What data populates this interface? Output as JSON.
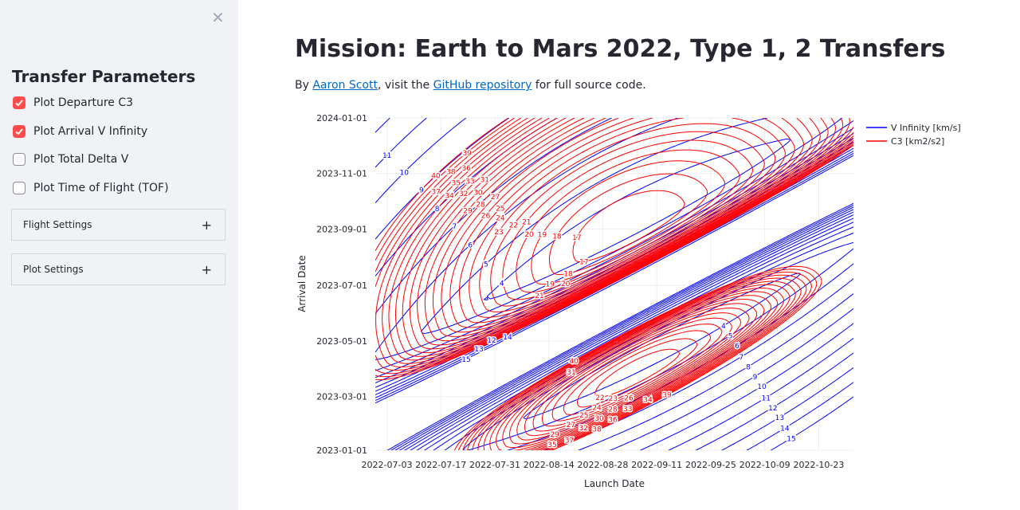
{
  "sidebar": {
    "close_icon": "close-x-icon",
    "title": "Transfer Parameters",
    "checkboxes": [
      {
        "label": "Plot Departure C3",
        "checked": true
      },
      {
        "label": "Plot Arrival V Infinity",
        "checked": true
      },
      {
        "label": "Plot Total Delta V",
        "checked": false
      },
      {
        "label": "Plot Time of Flight (TOF)",
        "checked": false
      }
    ],
    "expanders": [
      {
        "label": "Flight Settings",
        "icon": "+"
      },
      {
        "label": "Plot Settings",
        "icon": "+"
      }
    ],
    "accent": "#ff4b4b"
  },
  "main": {
    "title": "Mission: Earth to Mars 2022, Type 1, 2 Transfers",
    "byline": {
      "pre": "By ",
      "author": "Aaron Scott",
      "mid": ", visit the ",
      "repo": "GitHub repository",
      "post": " for full source code."
    }
  },
  "chart_data": {
    "type": "contour",
    "xlabel": "Launch Date",
    "ylabel": "Arrival Date",
    "xrange": [
      "2022-06-30",
      "2022-11-01"
    ],
    "yrange": [
      "2023-01-01",
      "2024-01-01"
    ],
    "xticks": [
      "2022-07-03",
      "2022-07-17",
      "2022-07-31",
      "2022-08-14",
      "2022-08-28",
      "2022-09-11",
      "2022-09-25",
      "2022-10-09",
      "2022-10-23"
    ],
    "yticks": [
      "2023-01-01",
      "2023-03-01",
      "2023-05-01",
      "2023-07-01",
      "2023-09-01",
      "2023-11-01",
      "2024-01-01"
    ],
    "grid": true,
    "legend_position": "top-right",
    "series": [
      {
        "name": "V Infinity [km/s]",
        "color": "#0000ff",
        "levels": [
          3,
          4,
          5,
          6,
          7,
          8,
          9,
          10,
          11,
          12,
          13,
          14,
          15
        ],
        "minima": [
          {
            "launch": "2022-09-05",
            "arrival": "2023-08-28",
            "value": 3
          },
          {
            "launch": "2022-09-11",
            "arrival": "2023-05-01",
            "value": 3
          }
        ]
      },
      {
        "name": "C3 [km2/s2]",
        "color": "#ff0000",
        "levels": [
          16,
          17,
          18,
          19,
          20,
          21,
          22,
          23,
          24,
          25,
          26,
          27,
          28,
          29,
          30,
          31,
          32,
          33,
          34,
          35,
          36,
          37,
          38,
          39,
          40
        ],
        "minima": [
          {
            "launch": "2022-09-07",
            "arrival": "2023-08-24",
            "value": 16
          },
          {
            "launch": "2022-09-09",
            "arrival": "2023-03-24",
            "value": 21
          }
        ]
      }
    ]
  }
}
